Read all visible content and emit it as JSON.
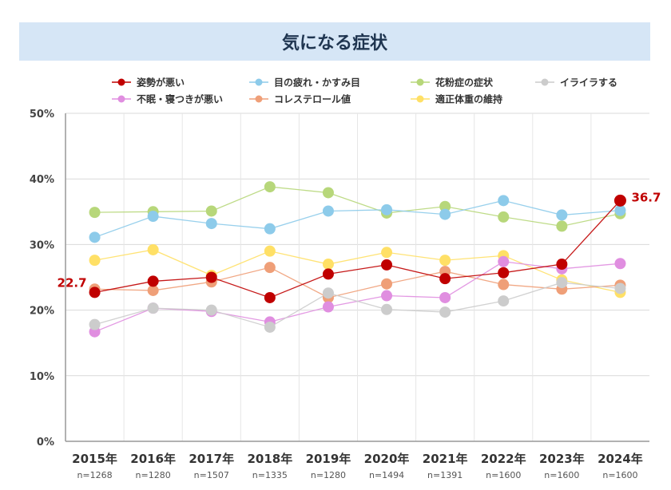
{
  "chart_data": {
    "type": "line",
    "title": "気になる症状",
    "xlabel": "",
    "ylabel": "",
    "ylim": [
      0,
      50
    ],
    "yticks": [
      "0%",
      "10%",
      "20%",
      "30%",
      "40%",
      "50%"
    ],
    "grid": true,
    "legend_position": "top",
    "categories": [
      "2015年",
      "2016年",
      "2017年",
      "2018年",
      "2019年",
      "2020年",
      "2021年",
      "2022年",
      "2023年",
      "2024年"
    ],
    "sample_sizes": [
      "n=1268",
      "n=1280",
      "n=1507",
      "n=1335",
      "n=1280",
      "n=1494",
      "n=1391",
      "n=1600",
      "n=1600",
      "n=1600"
    ],
    "series": [
      {
        "name": "姿勢が悪い",
        "color": "#c00000",
        "values": [
          22.7,
          24.4,
          25.0,
          21.9,
          25.5,
          26.9,
          24.8,
          25.7,
          27.0,
          36.7
        ]
      },
      {
        "name": "目の疲れ・かすみ目",
        "color": "#8dcbea",
        "values": [
          31.1,
          34.3,
          33.2,
          32.4,
          35.1,
          35.3,
          34.6,
          36.7,
          34.5,
          35.2
        ]
      },
      {
        "name": "花粉症の症状",
        "color": "#b7d77a",
        "values": [
          34.9,
          35.0,
          35.1,
          38.8,
          37.9,
          34.8,
          35.8,
          34.2,
          32.8,
          34.7
        ]
      },
      {
        "name": "イライラする",
        "color": "#cccccc",
        "values": [
          17.8,
          20.3,
          20.0,
          17.4,
          22.6,
          20.1,
          19.7,
          21.4,
          24.2,
          23.3
        ]
      },
      {
        "name": "不眠・寝つきが悪い",
        "color": "#e08ee0",
        "values": [
          16.7,
          20.3,
          19.8,
          18.2,
          20.5,
          22.2,
          21.9,
          27.4,
          26.3,
          27.1
        ]
      },
      {
        "name": "コレステロール値",
        "color": "#ef9f78",
        "values": [
          23.2,
          23.0,
          24.3,
          26.5,
          21.9,
          24.0,
          25.9,
          23.9,
          23.2,
          23.8
        ]
      },
      {
        "name": "適正体重の維持",
        "color": "#ffe066",
        "values": [
          27.6,
          29.2,
          25.3,
          29.0,
          27.0,
          28.8,
          27.6,
          28.3,
          24.6,
          22.7
        ]
      }
    ],
    "annotations": [
      {
        "series": "姿勢が悪い",
        "index": 0,
        "text": "22.7"
      },
      {
        "series": "姿勢が悪い",
        "index": 9,
        "text": "36.7"
      }
    ]
  }
}
